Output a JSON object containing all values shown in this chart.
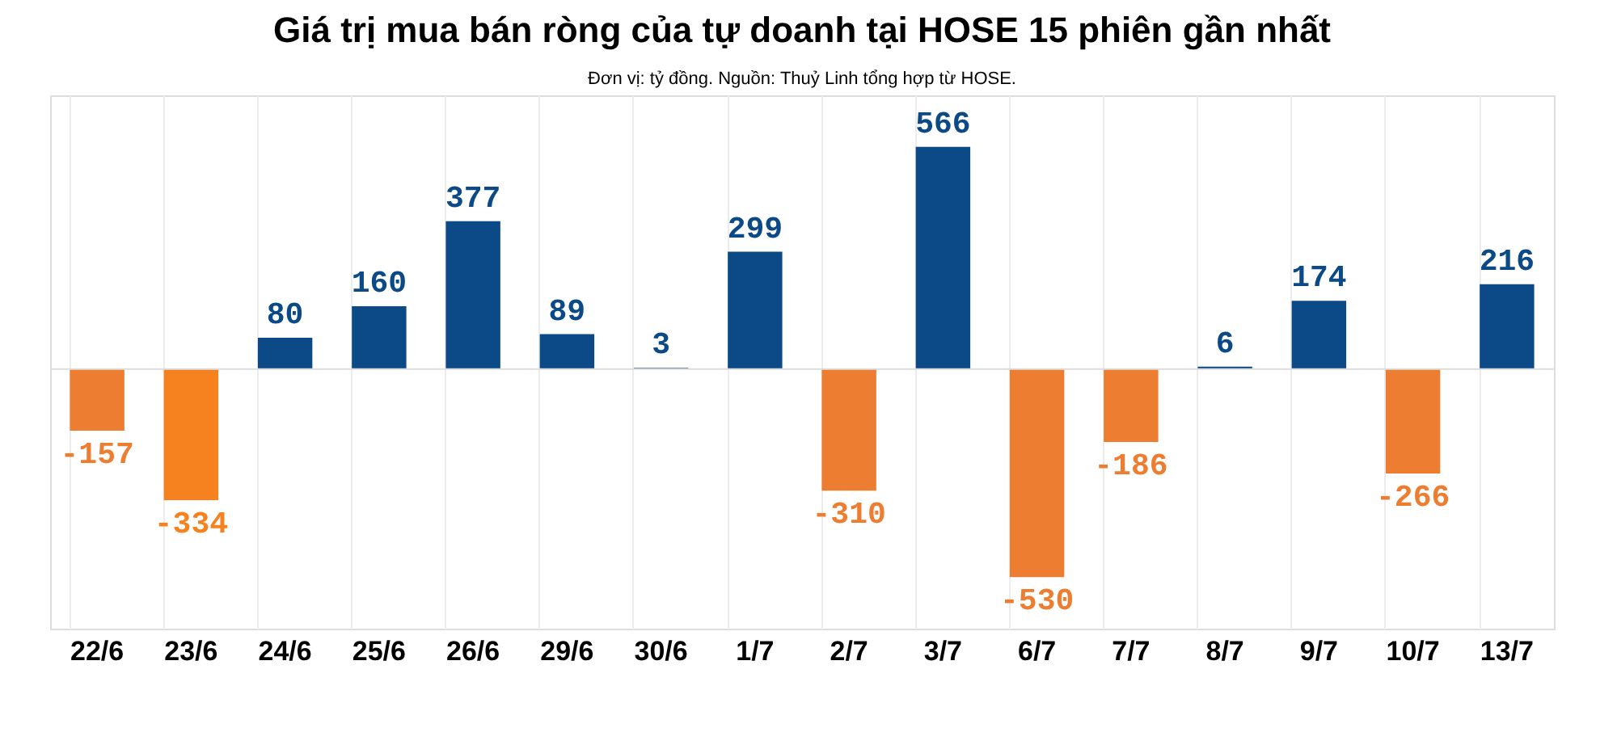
{
  "chart_data": {
    "type": "bar",
    "title": "Giá trị mua bán ròng của tự doanh tại HOSE 15 phiên gần nhất",
    "subtitle": "Đơn vị: tỷ đồng. Nguồn: Thuỷ Linh tổng hợp từ HOSE.",
    "categories": [
      "22/6",
      "23/6",
      "24/6",
      "25/6",
      "26/6",
      "29/6",
      "30/6",
      "1/7",
      "2/7",
      "3/7",
      "6/7",
      "7/7",
      "8/7",
      "9/7",
      "10/7",
      "13/7"
    ],
    "values": [
      -157,
      -334,
      80,
      160,
      377,
      89,
      3,
      299,
      -310,
      566,
      -530,
      -186,
      6,
      174,
      -266,
      216
    ],
    "colors": [
      "#ed7d31",
      "#f5821f",
      "#0b4a86",
      "#0b4a86",
      "#0b4a86",
      "#0b4a86",
      "#0b4a86",
      "#0b4a86",
      "#ed7d31",
      "#0b4a86",
      "#ed7d31",
      "#ed7d31",
      "#0b4a86",
      "#0b4a86",
      "#ed7d31",
      "#0b4a86"
    ],
    "data_labels": true,
    "grid": "x"
  }
}
